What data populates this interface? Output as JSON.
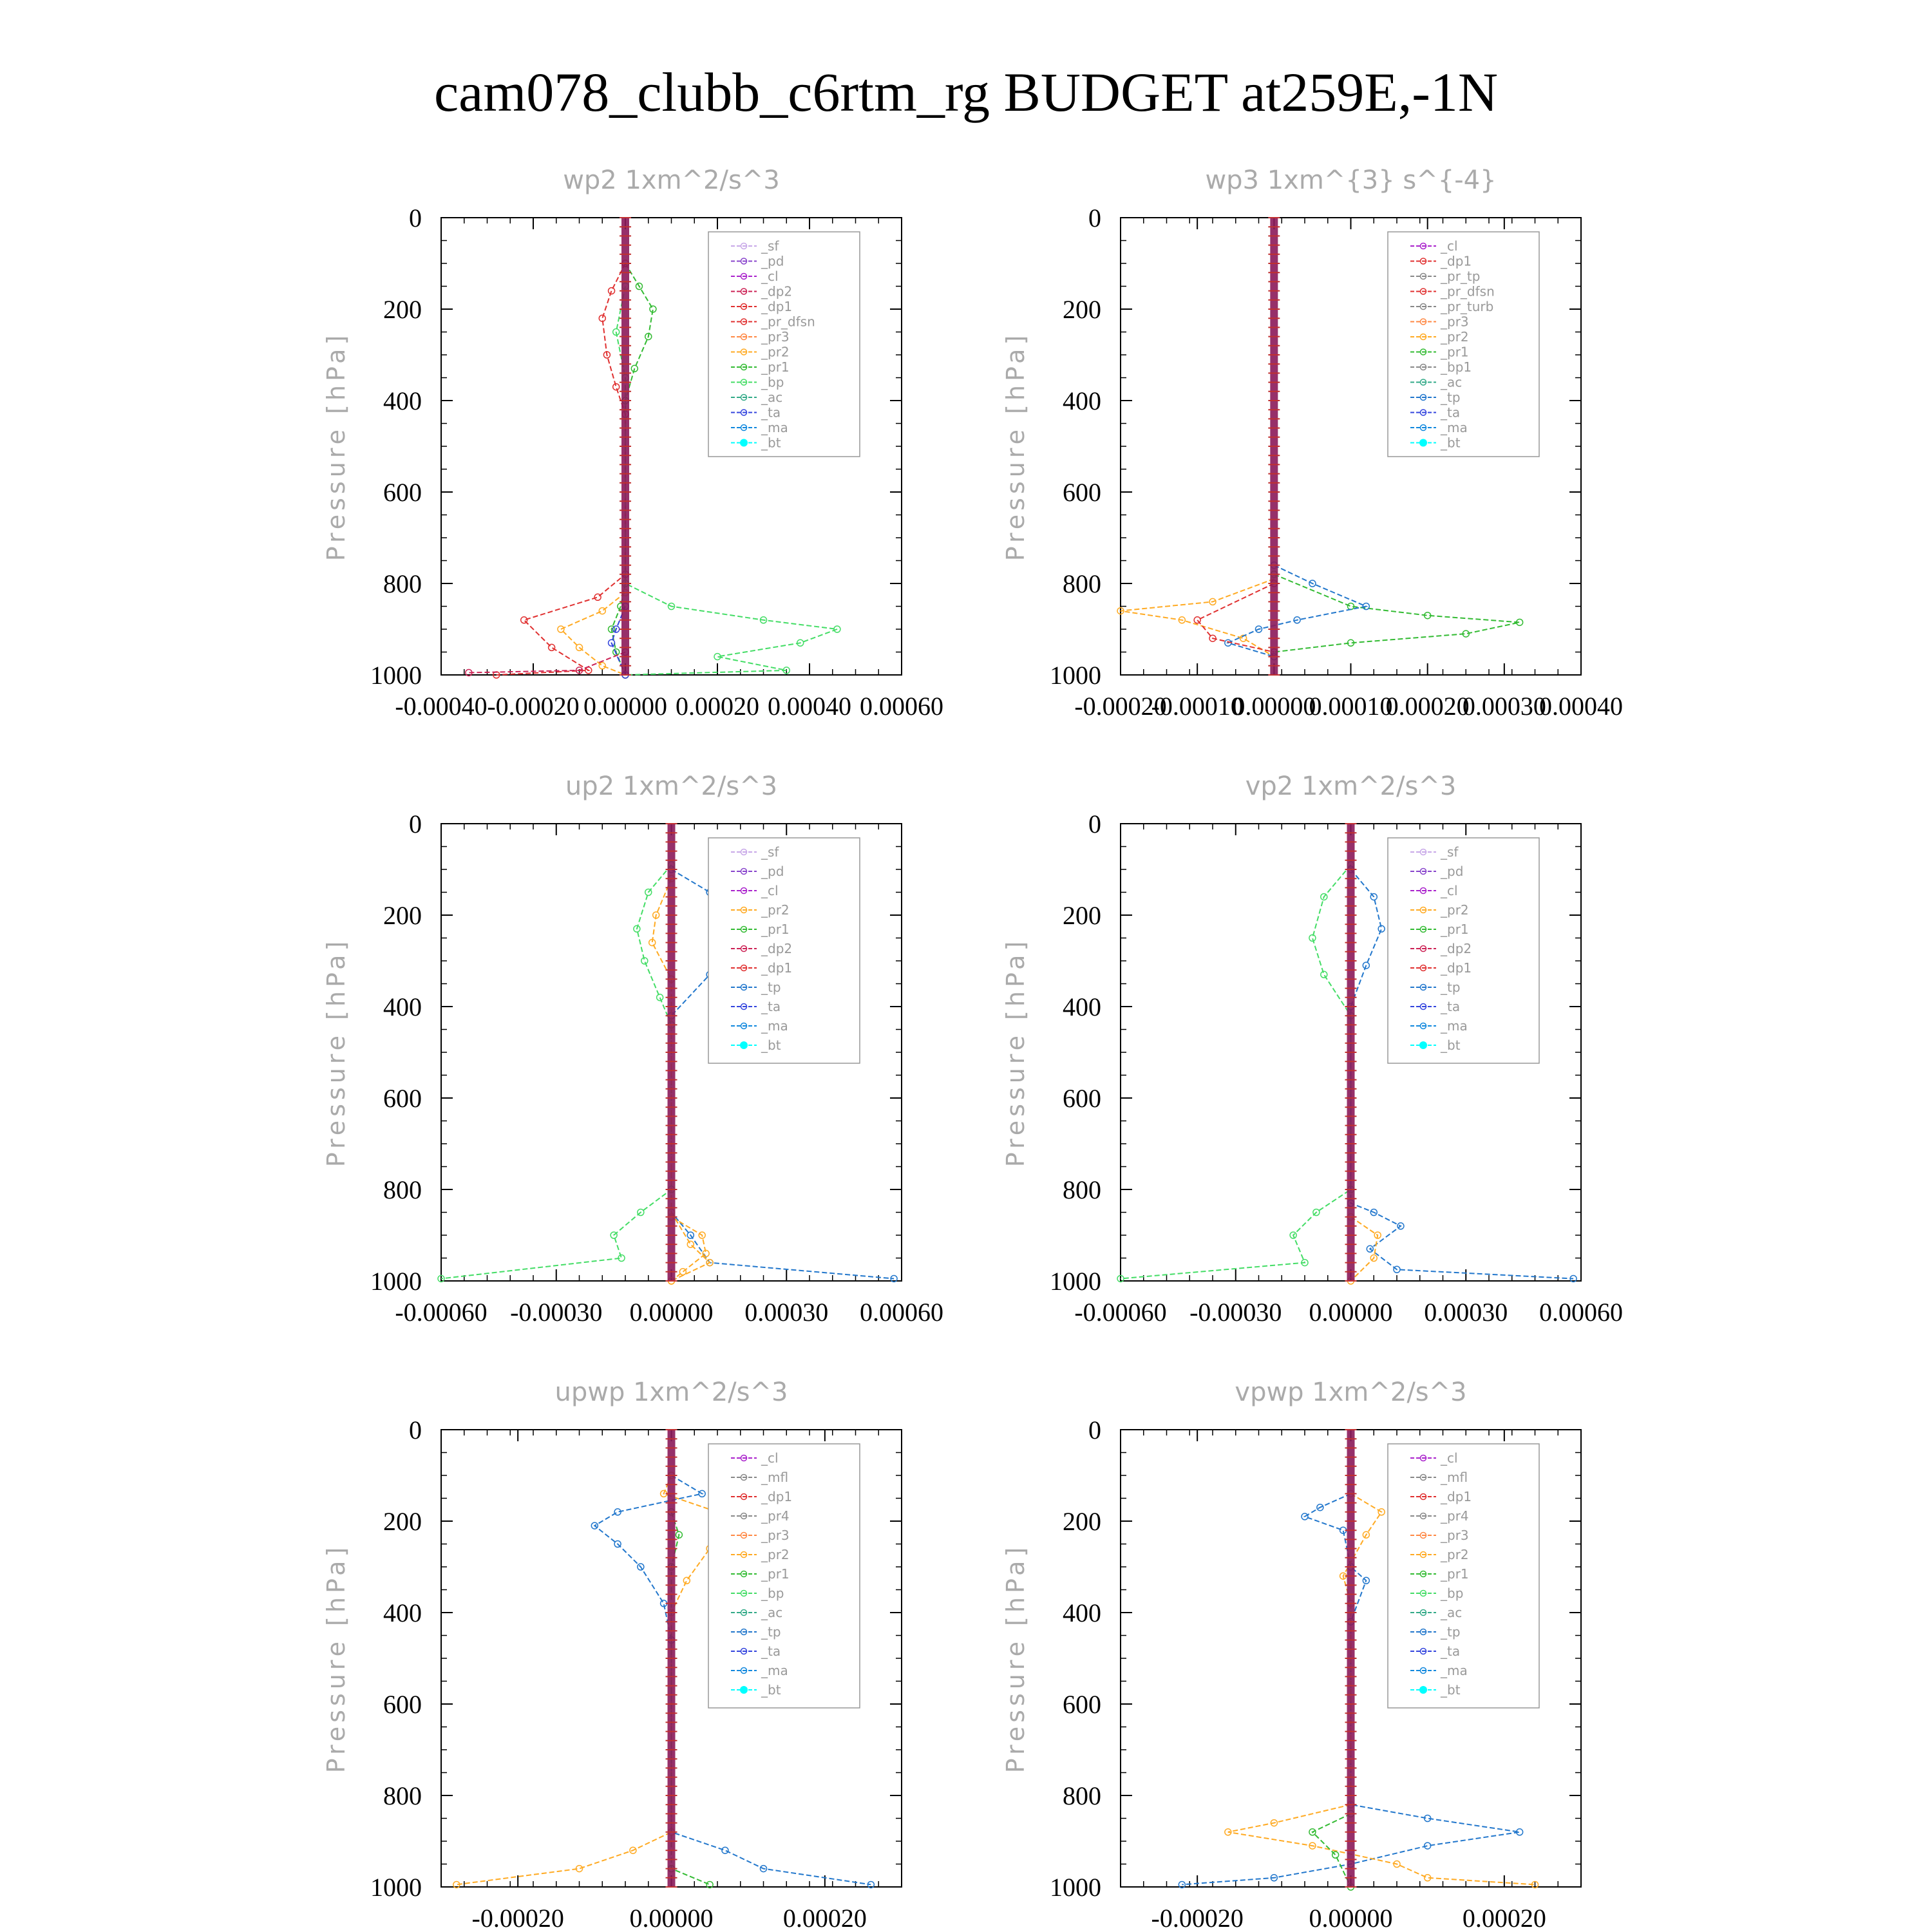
{
  "title": "cam078_clubb_c6rtm_rg  BUDGET at259E,-1N",
  "colors": {
    "sf": "#c8a8e8",
    "pd": "#8844cc",
    "cl": "#aa22cc",
    "dp2": "#cc2255",
    "dp1": "#e03030",
    "pr_dfsn": "#e03030",
    "pr3": "#ff8844",
    "pr2": "#ffaa22",
    "pr1": "#33bb33",
    "bp": "#44dd66",
    "ac": "#33aa88",
    "tp": "#2277cc",
    "ta": "#3344dd",
    "ma": "#1188dd",
    "bt": "#00ffff"
  },
  "chart_data": [
    {
      "type": "line",
      "title": "wp2   1xm^2/s^3",
      "ylabel": "Pressure  [hPa]",
      "ylim": [
        1000,
        0
      ],
      "xlim": [
        -0.0004,
        0.0006
      ],
      "xticks": [
        "-0.00040",
        "-0.00020",
        "0.00000",
        "0.00020",
        "0.00040",
        "0.00060"
      ],
      "yticks": [
        "0",
        "200",
        "400",
        "600",
        "800",
        "1000"
      ],
      "legend": [
        "_sf",
        "_pd",
        "_cl",
        "_dp2",
        "_dp1",
        "_pr_dfsn",
        "_pr3",
        "_pr2",
        "_pr1",
        "_bp",
        "_ac",
        "_ta",
        "_ma",
        "_bt"
      ],
      "series": [
        {
          "name": "_pr1",
          "color": "#33bb33",
          "points": [
            [
              0,
              100
            ],
            [
              3e-05,
              150
            ],
            [
              6e-05,
              200
            ],
            [
              5e-05,
              260
            ],
            [
              2e-05,
              330
            ],
            [
              0,
              400
            ],
            [
              0,
              800
            ],
            [
              -1e-05,
              850
            ],
            [
              -3e-05,
              900
            ],
            [
              -2e-05,
              950
            ],
            [
              0,
              1000
            ]
          ]
        },
        {
          "name": "_dp1",
          "color": "#e03030",
          "points": [
            [
              0,
              100
            ],
            [
              -3e-05,
              160
            ],
            [
              -5e-05,
              220
            ],
            [
              -4e-05,
              300
            ],
            [
              -2e-05,
              370
            ],
            [
              0,
              430
            ],
            [
              0,
              780
            ],
            [
              -6e-05,
              830
            ],
            [
              -0.00022,
              880
            ],
            [
              -0.00016,
              940
            ],
            [
              -8e-05,
              990
            ],
            [
              -0.00028,
              1000
            ]
          ]
        },
        {
          "name": "_bp",
          "color": "#44dd66",
          "points": [
            [
              0,
              150
            ],
            [
              -2e-05,
              250
            ],
            [
              0,
              350
            ],
            [
              0,
              800
            ],
            [
              0.0001,
              850
            ],
            [
              0.0003,
              880
            ],
            [
              0.00046,
              900
            ],
            [
              0.00038,
              930
            ],
            [
              0.0002,
              960
            ],
            [
              0.00035,
              990
            ],
            [
              0,
              1000
            ]
          ]
        },
        {
          "name": "_pr2",
          "color": "#ffaa22",
          "points": [
            [
              0,
              820
            ],
            [
              -5e-05,
              860
            ],
            [
              -0.00014,
              900
            ],
            [
              -0.0001,
              940
            ],
            [
              -5e-05,
              980
            ],
            [
              0,
              1000
            ]
          ]
        },
        {
          "name": "_ta",
          "color": "#3344dd",
          "points": [
            [
              0,
              850
            ],
            [
              -2e-05,
              900
            ],
            [
              -3e-05,
              930
            ],
            [
              0,
              1000
            ]
          ]
        },
        {
          "name": "_dp2",
          "color": "#cc2255",
          "points": [
            [
              0,
              950
            ],
            [
              -0.0001,
              990
            ],
            [
              -0.00034,
              995
            ]
          ]
        }
      ]
    },
    {
      "type": "line",
      "title": "wp3   1xm^{3} s^{-4}",
      "ylabel": "Pressure  [hPa]",
      "ylim": [
        1000,
        0
      ],
      "xlim": [
        -0.0002,
        0.0004
      ],
      "xticks": [
        "-0.00020",
        "-0.00010",
        "0.00000",
        "0.00010",
        "0.00020",
        "0.00030",
        "0.00040"
      ],
      "yticks": [
        "0",
        "200",
        "400",
        "600",
        "800",
        "1000"
      ],
      "legend": [
        "_cl",
        "_dp1",
        "_pr_tp",
        "_pr_dfsn",
        "_pr_turb",
        "_pr3",
        "_pr2",
        "_pr1",
        "_bp1",
        "_ac",
        "_tp",
        "_ta",
        "_ma",
        "_bt"
      ],
      "series": [
        {
          "name": "_pr1",
          "color": "#33bb33",
          "points": [
            [
              0,
              780
            ],
            [
              0.0001,
              850
            ],
            [
              0.0002,
              870
            ],
            [
              0.00032,
              885
            ],
            [
              0.00025,
              910
            ],
            [
              0.0001,
              930
            ],
            [
              0,
              950
            ]
          ]
        },
        {
          "name": "_pr2",
          "color": "#ffaa22",
          "points": [
            [
              0,
              790
            ],
            [
              -8e-05,
              840
            ],
            [
              -0.0002,
              860
            ],
            [
              -0.00012,
              880
            ],
            [
              -4e-05,
              920
            ],
            [
              0,
              960
            ]
          ]
        },
        {
          "name": "_tp",
          "color": "#2277cc",
          "points": [
            [
              0,
              760
            ],
            [
              5e-05,
              800
            ],
            [
              0.00012,
              850
            ],
            [
              3e-05,
              880
            ],
            [
              -2e-05,
              900
            ],
            [
              -6e-05,
              930
            ],
            [
              0,
              960
            ]
          ]
        },
        {
          "name": "_pr_dfsn",
          "color": "#e03030",
          "points": [
            [
              0,
              800
            ],
            [
              -0.0001,
              880
            ],
            [
              -8e-05,
              920
            ],
            [
              0,
              950
            ]
          ]
        }
      ]
    },
    {
      "type": "line",
      "title": "up2   1xm^2/s^3",
      "ylabel": "Pressure  [hPa]",
      "ylim": [
        1000,
        0
      ],
      "xlim": [
        -0.0006,
        0.0006
      ],
      "xticks": [
        "-0.00060",
        "-0.00030",
        "0.00000",
        "0.00030",
        "0.00060"
      ],
      "yticks": [
        "0",
        "200",
        "400",
        "600",
        "800",
        "1000"
      ],
      "legend": [
        "_sf",
        "_pd",
        "_cl",
        "_pr2",
        "_pr1",
        "_dp2",
        "_dp1",
        "_tp",
        "_ta",
        "_ma",
        "_bt"
      ],
      "series": [
        {
          "name": "_tp",
          "color": "#2277cc",
          "points": [
            [
              0,
              100
            ],
            [
              0.0001,
              150
            ],
            [
              0.00017,
              230
            ],
            [
              0.0001,
              330
            ],
            [
              0,
              420
            ],
            [
              0,
              850
            ],
            [
              5e-05,
              900
            ],
            [
              0.0001,
              960
            ],
            [
              0.00058,
              995
            ]
          ]
        },
        {
          "name": "_dp1",
          "color": "#44dd66",
          "points": [
            [
              0,
              90
            ],
            [
              -6e-05,
              150
            ],
            [
              -9e-05,
              230
            ],
            [
              -7e-05,
              300
            ],
            [
              -3e-05,
              380
            ],
            [
              0,
              440
            ],
            [
              0,
              800
            ],
            [
              -8e-05,
              850
            ],
            [
              -0.00015,
              900
            ],
            [
              -0.00013,
              950
            ],
            [
              -0.0006,
              995
            ]
          ]
        },
        {
          "name": "_pr1",
          "color": "#ffaa22",
          "points": [
            [
              0,
              120
            ],
            [
              -4e-05,
              200
            ],
            [
              -5e-05,
              260
            ],
            [
              0,
              340
            ],
            [
              0,
              860
            ],
            [
              8e-05,
              900
            ],
            [
              9e-05,
              940
            ],
            [
              3e-05,
              980
            ],
            [
              0,
              1000
            ]
          ]
        },
        {
          "name": "_pr2",
          "color": "#ffaa22",
          "points": [
            [
              0,
              850
            ],
            [
              5e-05,
              920
            ],
            [
              0.0001,
              960
            ],
            [
              0,
              1000
            ]
          ]
        }
      ]
    },
    {
      "type": "line",
      "title": "vp2   1xm^2/s^3",
      "ylabel": "Pressure  [hPa]",
      "ylim": [
        1000,
        0
      ],
      "xlim": [
        -0.0006,
        0.0006
      ],
      "xticks": [
        "-0.00060",
        "-0.00030",
        "0.00000",
        "0.00030",
        "0.00060"
      ],
      "yticks": [
        "0",
        "200",
        "400",
        "600",
        "800",
        "1000"
      ],
      "legend": [
        "_sf",
        "_pd",
        "_cl",
        "_pr2",
        "_pr1",
        "_dp2",
        "_dp1",
        "_tp",
        "_ta",
        "_ma",
        "_bt"
      ],
      "series": [
        {
          "name": "_dp1",
          "color": "#44dd66",
          "points": [
            [
              0,
              90
            ],
            [
              -7e-05,
              160
            ],
            [
              -0.0001,
              250
            ],
            [
              -7e-05,
              330
            ],
            [
              0,
              420
            ],
            [
              0,
              800
            ],
            [
              -9e-05,
              850
            ],
            [
              -0.00015,
              900
            ],
            [
              -0.00012,
              960
            ],
            [
              -0.0006,
              995
            ]
          ]
        },
        {
          "name": "_tp",
          "color": "#2277cc",
          "points": [
            [
              0,
              100
            ],
            [
              6e-05,
              160
            ],
            [
              8e-05,
              230
            ],
            [
              4e-05,
              310
            ],
            [
              0,
              400
            ],
            [
              0,
              830
            ],
            [
              6e-05,
              850
            ],
            [
              0.00013,
              880
            ],
            [
              5e-05,
              930
            ],
            [
              0.00012,
              975
            ],
            [
              0.00058,
              995
            ]
          ]
        },
        {
          "name": "_pr1",
          "color": "#ffaa22",
          "points": [
            [
              0,
              860
            ],
            [
              7e-05,
              900
            ],
            [
              6e-05,
              950
            ],
            [
              0,
              1000
            ]
          ]
        }
      ]
    },
    {
      "type": "line",
      "title": "upwp   1xm^2/s^3",
      "ylabel": "Pressure  [hPa]",
      "ylim": [
        1000,
        0
      ],
      "xlim": [
        -0.0003,
        0.0003
      ],
      "xticks": [
        "-0.00020",
        "0.00000",
        "0.00020"
      ],
      "yticks": [
        "0",
        "200",
        "400",
        "600",
        "800",
        "1000"
      ],
      "legend": [
        "_cl",
        "_mfl",
        "_dp1",
        "_pr4",
        "_pr3",
        "_pr2",
        "_pr1",
        "_bp",
        "_ac",
        "_tp",
        "_ta",
        "_ma",
        "_bt"
      ],
      "series": [
        {
          "name": "_tp",
          "color": "#2277cc",
          "points": [
            [
              0,
              100
            ],
            [
              4e-05,
              140
            ],
            [
              -7e-05,
              180
            ],
            [
              -0.0001,
              210
            ],
            [
              -7e-05,
              250
            ],
            [
              -4e-05,
              300
            ],
            [
              -1e-05,
              380
            ],
            [
              0,
              460
            ],
            [
              0,
              880
            ],
            [
              7e-05,
              920
            ],
            [
              0.00012,
              960
            ],
            [
              0.00026,
              995
            ]
          ]
        },
        {
          "name": "_pr1",
          "color": "#ffaa22",
          "points": [
            [
              0,
              100
            ],
            [
              -1e-05,
              140
            ],
            [
              6e-05,
              180
            ],
            [
              8e-05,
              220
            ],
            [
              5e-05,
              260
            ],
            [
              2e-05,
              330
            ],
            [
              0,
              400
            ],
            [
              0,
              880
            ],
            [
              -5e-05,
              920
            ],
            [
              -0.00012,
              960
            ],
            [
              -0.00028,
              995
            ]
          ]
        },
        {
          "name": "_bp",
          "color": "#33bb33",
          "points": [
            [
              0,
              180
            ],
            [
              1e-05,
              230
            ],
            [
              0,
              300
            ],
            [
              0,
              960
            ],
            [
              5e-05,
              995
            ]
          ]
        }
      ]
    },
    {
      "type": "line",
      "title": "vpwp   1xm^2/s^3",
      "ylabel": "Pressure  [hPa]",
      "ylim": [
        1000,
        0
      ],
      "xlim": [
        -0.0003,
        0.0003
      ],
      "xticks": [
        "-0.00020",
        "0.00000",
        "0.00020"
      ],
      "yticks": [
        "0",
        "200",
        "400",
        "600",
        "800",
        "1000"
      ],
      "legend": [
        "_cl",
        "_mfl",
        "_dp1",
        "_pr4",
        "_pr3",
        "_pr2",
        "_pr1",
        "_bp",
        "_ac",
        "_tp",
        "_ta",
        "_ma",
        "_bt"
      ],
      "series": [
        {
          "name": "_tp",
          "color": "#2277cc",
          "points": [
            [
              0,
              140
            ],
            [
              -4e-05,
              170
            ],
            [
              -6e-05,
              190
            ],
            [
              -1e-05,
              220
            ],
            [
              0,
              300
            ],
            [
              2e-05,
              330
            ],
            [
              0,
              420
            ],
            [
              0,
              820
            ],
            [
              0.0001,
              850
            ],
            [
              0.00022,
              880
            ],
            [
              0.0001,
              910
            ],
            [
              0,
              950
            ],
            [
              -0.0001,
              980
            ],
            [
              -0.00022,
              995
            ]
          ]
        },
        {
          "name": "_pr1",
          "color": "#ffaa22",
          "points": [
            [
              0,
              140
            ],
            [
              4e-05,
              180
            ],
            [
              2e-05,
              230
            ],
            [
              -1e-05,
              320
            ],
            [
              0,
              380
            ],
            [
              0,
              820
            ],
            [
              -0.0001,
              860
            ],
            [
              -0.00016,
              880
            ],
            [
              -5e-05,
              910
            ],
            [
              6e-05,
              950
            ],
            [
              0.0001,
              980
            ],
            [
              0.00024,
              995
            ]
          ]
        },
        {
          "name": "_bp",
          "color": "#33bb33",
          "points": [
            [
              0,
              840
            ],
            [
              -5e-05,
              880
            ],
            [
              -2e-05,
              930
            ],
            [
              0,
              1000
            ]
          ]
        }
      ]
    }
  ]
}
